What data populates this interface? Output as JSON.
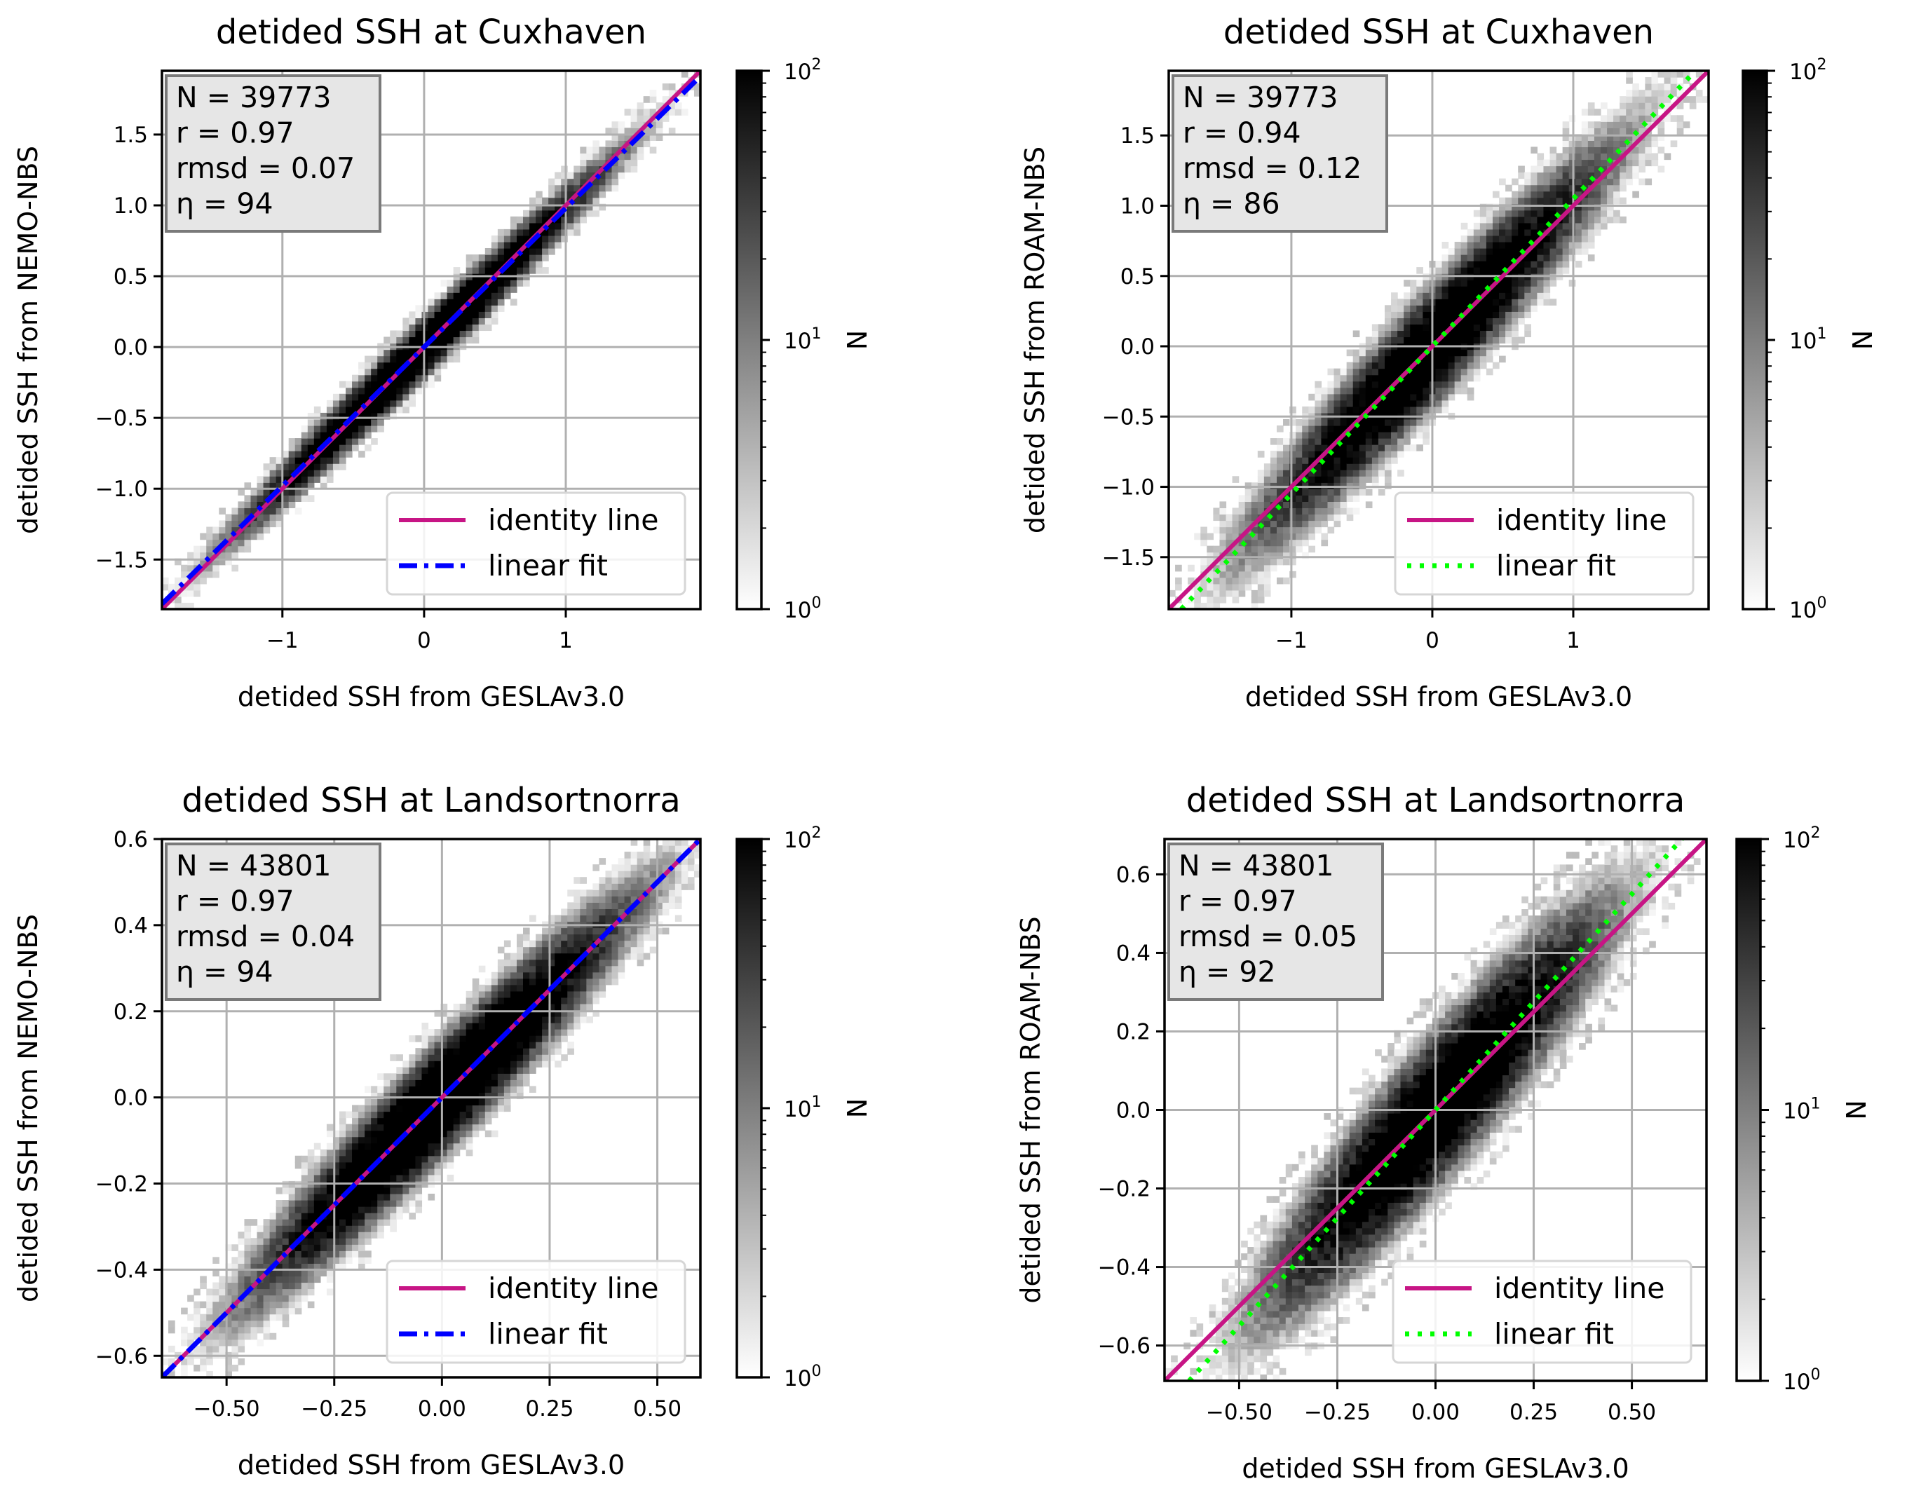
{
  "chart_data": [
    {
      "type": "heatmap",
      "title": "detided SSH at Cuxhaven",
      "xlabel": "detided SSH from GESLAv3.0",
      "ylabel": "detided SSH from NEMO-NBS",
      "xlim": [
        -1.85,
        1.95
      ],
      "ylim": [
        -1.85,
        1.95
      ],
      "xticks": [
        -1,
        0,
        1
      ],
      "xtick_labels": [
        "−1",
        "0",
        "1"
      ],
      "yticks": [
        -1.5,
        -1.0,
        -0.5,
        0.0,
        0.5,
        1.0,
        1.5
      ],
      "ytick_labels": [
        "−1.5",
        "−1.0",
        "−0.5",
        "0.0",
        "0.5",
        "1.0",
        "1.5"
      ],
      "grid": true,
      "stats": [
        "N = 39773",
        "r = 0.97",
        "rmsd = 0.07",
        "η =  94"
      ],
      "legend": {
        "placement": "lower right",
        "entries": [
          "identity line",
          "linear fit"
        ]
      },
      "identity_line": {
        "slope": 1,
        "intercept": 0,
        "color": "#c71585"
      },
      "linear_fit": {
        "slope": 0.98,
        "intercept": 0.0,
        "color": "#0000ff",
        "style": "dashdot"
      },
      "colorbar": {
        "label": "N",
        "scale": "log",
        "range": [
          1,
          100
        ],
        "tick_labels": [
          "10",
          "10",
          "10"
        ],
        "tick_exponents": [
          "0",
          "1",
          "2"
        ],
        "colormap": "Greys"
      }
    },
    {
      "type": "heatmap",
      "title": "detided SSH at Cuxhaven",
      "xlabel": "detided SSH from GESLAv3.0",
      "ylabel": "detided SSH from ROAM-NBS",
      "xlim": [
        -1.87,
        1.96
      ],
      "ylim": [
        -1.87,
        1.96
      ],
      "xticks": [
        -1,
        0,
        1
      ],
      "xtick_labels": [
        "−1",
        "0",
        "1"
      ],
      "yticks": [
        -1.5,
        -1.0,
        -0.5,
        0.0,
        0.5,
        1.0,
        1.5
      ],
      "ytick_labels": [
        "−1.5",
        "−1.0",
        "−0.5",
        "0.0",
        "0.5",
        "1.0",
        "1.5"
      ],
      "grid": true,
      "stats": [
        "N = 39773",
        "r = 0.94",
        "rmsd = 0.12",
        "η =  86"
      ],
      "legend": {
        "placement": "lower right",
        "entries": [
          "identity line",
          "linear fit"
        ]
      },
      "identity_line": {
        "slope": 1,
        "intercept": 0,
        "color": "#c71585"
      },
      "linear_fit": {
        "slope": 1.05,
        "intercept": 0.0,
        "color": "#00ff00",
        "style": "dotted"
      },
      "colorbar": {
        "label": "N",
        "scale": "log",
        "range": [
          1,
          100
        ],
        "tick_labels": [
          "10",
          "10",
          "10"
        ],
        "tick_exponents": [
          "0",
          "1",
          "2"
        ],
        "colormap": "Greys"
      }
    },
    {
      "type": "heatmap",
      "title": "detided SSH at Landsortnorra",
      "xlabel": "detided SSH from GESLAv3.0",
      "ylabel": "detided SSH from NEMO-NBS",
      "xlim": [
        -0.65,
        0.6
      ],
      "ylim": [
        -0.65,
        0.6
      ],
      "xticks": [
        -0.5,
        -0.25,
        0.0,
        0.25,
        0.5
      ],
      "xtick_labels": [
        "−0.50",
        "−0.25",
        "0.00",
        "0.25",
        "0.50"
      ],
      "yticks": [
        -0.6,
        -0.4,
        -0.2,
        0.0,
        0.2,
        0.4,
        0.6
      ],
      "ytick_labels": [
        "−0.6",
        "−0.4",
        "−0.2",
        "0.0",
        "0.2",
        "0.4",
        "0.6"
      ],
      "grid": true,
      "stats": [
        "N = 43801",
        "r = 0.97",
        "rmsd = 0.04",
        "η =  94"
      ],
      "legend": {
        "placement": "lower right",
        "entries": [
          "identity line",
          "linear fit"
        ]
      },
      "identity_line": {
        "slope": 1,
        "intercept": 0,
        "color": "#c71585"
      },
      "linear_fit": {
        "slope": 1.0,
        "intercept": 0.0,
        "color": "#0000ff",
        "style": "dashdot"
      },
      "colorbar": {
        "label": "N",
        "scale": "log",
        "range": [
          1,
          100
        ],
        "tick_labels": [
          "10",
          "10",
          "10"
        ],
        "tick_exponents": [
          "0",
          "1",
          "2"
        ],
        "colormap": "Greys"
      }
    },
    {
      "type": "heatmap",
      "title": "detided SSH at Landsortnorra",
      "xlabel": "detided SSH from GESLAv3.0",
      "ylabel": "detided SSH from ROAM-NBS",
      "xlim": [
        -0.69,
        0.69
      ],
      "ylim": [
        -0.69,
        0.69
      ],
      "xticks": [
        -0.5,
        -0.25,
        0.0,
        0.25,
        0.5
      ],
      "xtick_labels": [
        "−0.50",
        "−0.25",
        "0.00",
        "0.25",
        "0.50"
      ],
      "yticks": [
        -0.6,
        -0.4,
        -0.2,
        0.0,
        0.2,
        0.4,
        0.6
      ],
      "ytick_labels": [
        "−0.6",
        "−0.4",
        "−0.2",
        "0.0",
        "0.2",
        "0.4",
        "0.6"
      ],
      "grid": true,
      "stats": [
        "N = 43801",
        "r = 0.97",
        "rmsd = 0.05",
        "η =  92"
      ],
      "legend": {
        "placement": "lower right",
        "entries": [
          "identity line",
          "linear fit"
        ]
      },
      "identity_line": {
        "slope": 1,
        "intercept": 0,
        "color": "#c71585"
      },
      "linear_fit": {
        "slope": 1.1,
        "intercept": 0.0,
        "color": "#00ff00",
        "style": "dotted"
      },
      "colorbar": {
        "label": "N",
        "scale": "log",
        "range": [
          1,
          100
        ],
        "tick_labels": [
          "10",
          "10",
          "10"
        ],
        "tick_exponents": [
          "0",
          "1",
          "2"
        ],
        "colormap": "Greys"
      }
    }
  ]
}
